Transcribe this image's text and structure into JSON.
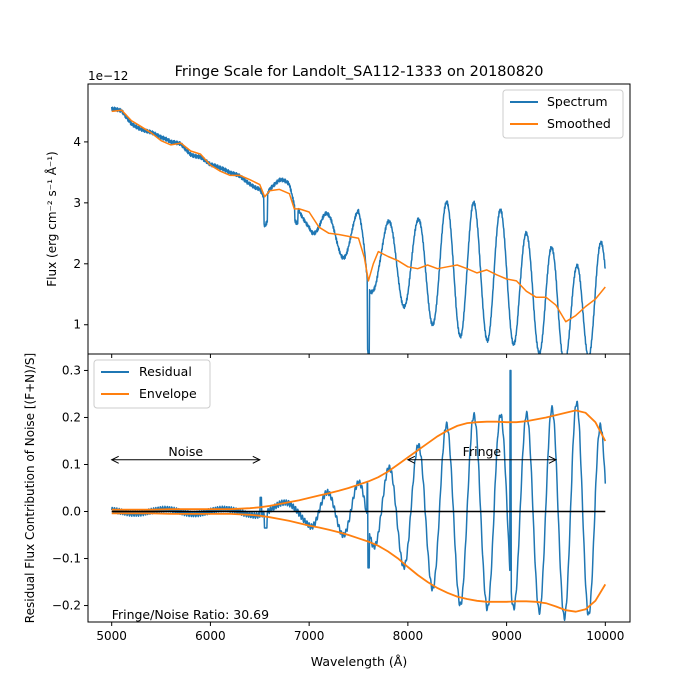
{
  "colors": {
    "spectrum": "#1f77b4",
    "smoothed": "#ff7f0e",
    "axis": "#000000",
    "zero_line": "#000000"
  },
  "figure": {
    "title": "Fringe Scale for Landolt_SA112-1333 on 20180820",
    "xlabel": "Wavelength (Å)"
  },
  "chart_data": [
    {
      "type": "line",
      "title": "Fringe Scale for Landolt_SA112-1333 on 20180820",
      "ylabel": "Flux (erg cm⁻² s⁻¹ Å⁻¹)",
      "offset_label": "1e−12",
      "xlim": [
        4760,
        10250
      ],
      "ylim": [
        0.52,
        4.95
      ],
      "xticks": [
        5000,
        6000,
        7000,
        8000,
        9000,
        10000
      ],
      "yticks": [
        1,
        2,
        3,
        4
      ],
      "legend": "upper-right",
      "series": [
        {
          "name": "Spectrum",
          "color": "#1f77b4"
        },
        {
          "name": "Smoothed",
          "color": "#ff7f0e"
        }
      ],
      "smoothed_points": {
        "x": [
          5000,
          5100,
          5200,
          5300,
          5400,
          5500,
          5600,
          5700,
          5800,
          5900,
          6000,
          6100,
          6200,
          6300,
          6400,
          6500,
          6550,
          6600,
          6700,
          6800,
          6850,
          6900,
          7000,
          7100,
          7200,
          7300,
          7400,
          7500,
          7560,
          7600,
          7650,
          7700,
          7800,
          7900,
          8000,
          8100,
          8200,
          8300,
          8400,
          8500,
          8600,
          8700,
          8800,
          8900,
          9000,
          9100,
          9200,
          9300,
          9400,
          9500,
          9600,
          9700,
          9800,
          9900,
          10000
        ],
        "y": [
          4.5,
          4.52,
          4.35,
          4.25,
          4.15,
          4.02,
          3.95,
          3.98,
          3.85,
          3.8,
          3.62,
          3.52,
          3.45,
          3.45,
          3.38,
          3.3,
          3.1,
          3.2,
          3.22,
          3.15,
          2.9,
          2.9,
          2.85,
          2.6,
          2.5,
          2.48,
          2.45,
          2.42,
          2.1,
          1.72,
          2.0,
          2.2,
          2.12,
          2.05,
          1.95,
          1.92,
          1.98,
          1.92,
          1.95,
          1.98,
          1.92,
          1.85,
          1.9,
          1.82,
          1.75,
          1.72,
          1.55,
          1.45,
          1.45,
          1.32,
          1.05,
          1.15,
          1.3,
          1.42,
          1.62
        ]
      }
    },
    {
      "type": "line",
      "ylabel": "Residual Flux Contribution of Noise [(F+N)/S]",
      "xlabel": "Wavelength (Å)",
      "xlim": [
        4760,
        10250
      ],
      "ylim": [
        -0.235,
        0.335
      ],
      "xticks": [
        5000,
        6000,
        7000,
        8000,
        9000,
        10000
      ],
      "yticks": [
        -0.2,
        -0.1,
        0.0,
        0.1,
        0.2,
        0.3
      ],
      "legend": "upper-left",
      "series": [
        {
          "name": "Residual",
          "color": "#1f77b4"
        },
        {
          "name": "Envelope",
          "color": "#ff7f0e"
        }
      ],
      "envelope_points": {
        "x": [
          5000,
          5200,
          5400,
          5600,
          5800,
          6000,
          6200,
          6400,
          6500,
          6600,
          6700,
          6800,
          6900,
          7000,
          7100,
          7200,
          7300,
          7400,
          7500,
          7600,
          7700,
          7800,
          7900,
          8000,
          8100,
          8200,
          8300,
          8400,
          8500,
          8600,
          8700,
          8800,
          8900,
          9000,
          9100,
          9200,
          9300,
          9400,
          9500,
          9600,
          9700,
          9800,
          9900,
          10000
        ],
        "upper": [
          0.004,
          0.004,
          0.004,
          0.005,
          0.005,
          0.005,
          0.005,
          0.007,
          0.009,
          0.012,
          0.016,
          0.02,
          0.024,
          0.029,
          0.034,
          0.039,
          0.044,
          0.05,
          0.057,
          0.064,
          0.073,
          0.085,
          0.1,
          0.115,
          0.13,
          0.145,
          0.16,
          0.172,
          0.182,
          0.188,
          0.19,
          0.191,
          0.191,
          0.19,
          0.19,
          0.192,
          0.196,
          0.2,
          0.205,
          0.21,
          0.215,
          0.21,
          0.19,
          0.15
        ],
        "lower": [
          -0.004,
          -0.004,
          -0.004,
          -0.005,
          -0.005,
          -0.005,
          -0.005,
          -0.007,
          -0.009,
          -0.012,
          -0.016,
          -0.02,
          -0.025,
          -0.03,
          -0.034,
          -0.039,
          -0.044,
          -0.05,
          -0.057,
          -0.064,
          -0.073,
          -0.085,
          -0.1,
          -0.118,
          -0.135,
          -0.15,
          -0.163,
          -0.173,
          -0.181,
          -0.186,
          -0.19,
          -0.192,
          -0.192,
          -0.192,
          -0.191,
          -0.191,
          -0.192,
          -0.195,
          -0.202,
          -0.21,
          -0.213,
          -0.208,
          -0.19,
          -0.155
        ]
      },
      "annotations": [
        {
          "text": "Noise",
          "from": 5000,
          "to": 6500,
          "y": 0.11
        },
        {
          "text": "Fringe",
          "from": 8000,
          "to": 9500,
          "y": 0.11
        },
        {
          "text": "Fringe/Noise Ratio: 30.69",
          "x": 5000,
          "y": -0.22
        }
      ]
    }
  ]
}
